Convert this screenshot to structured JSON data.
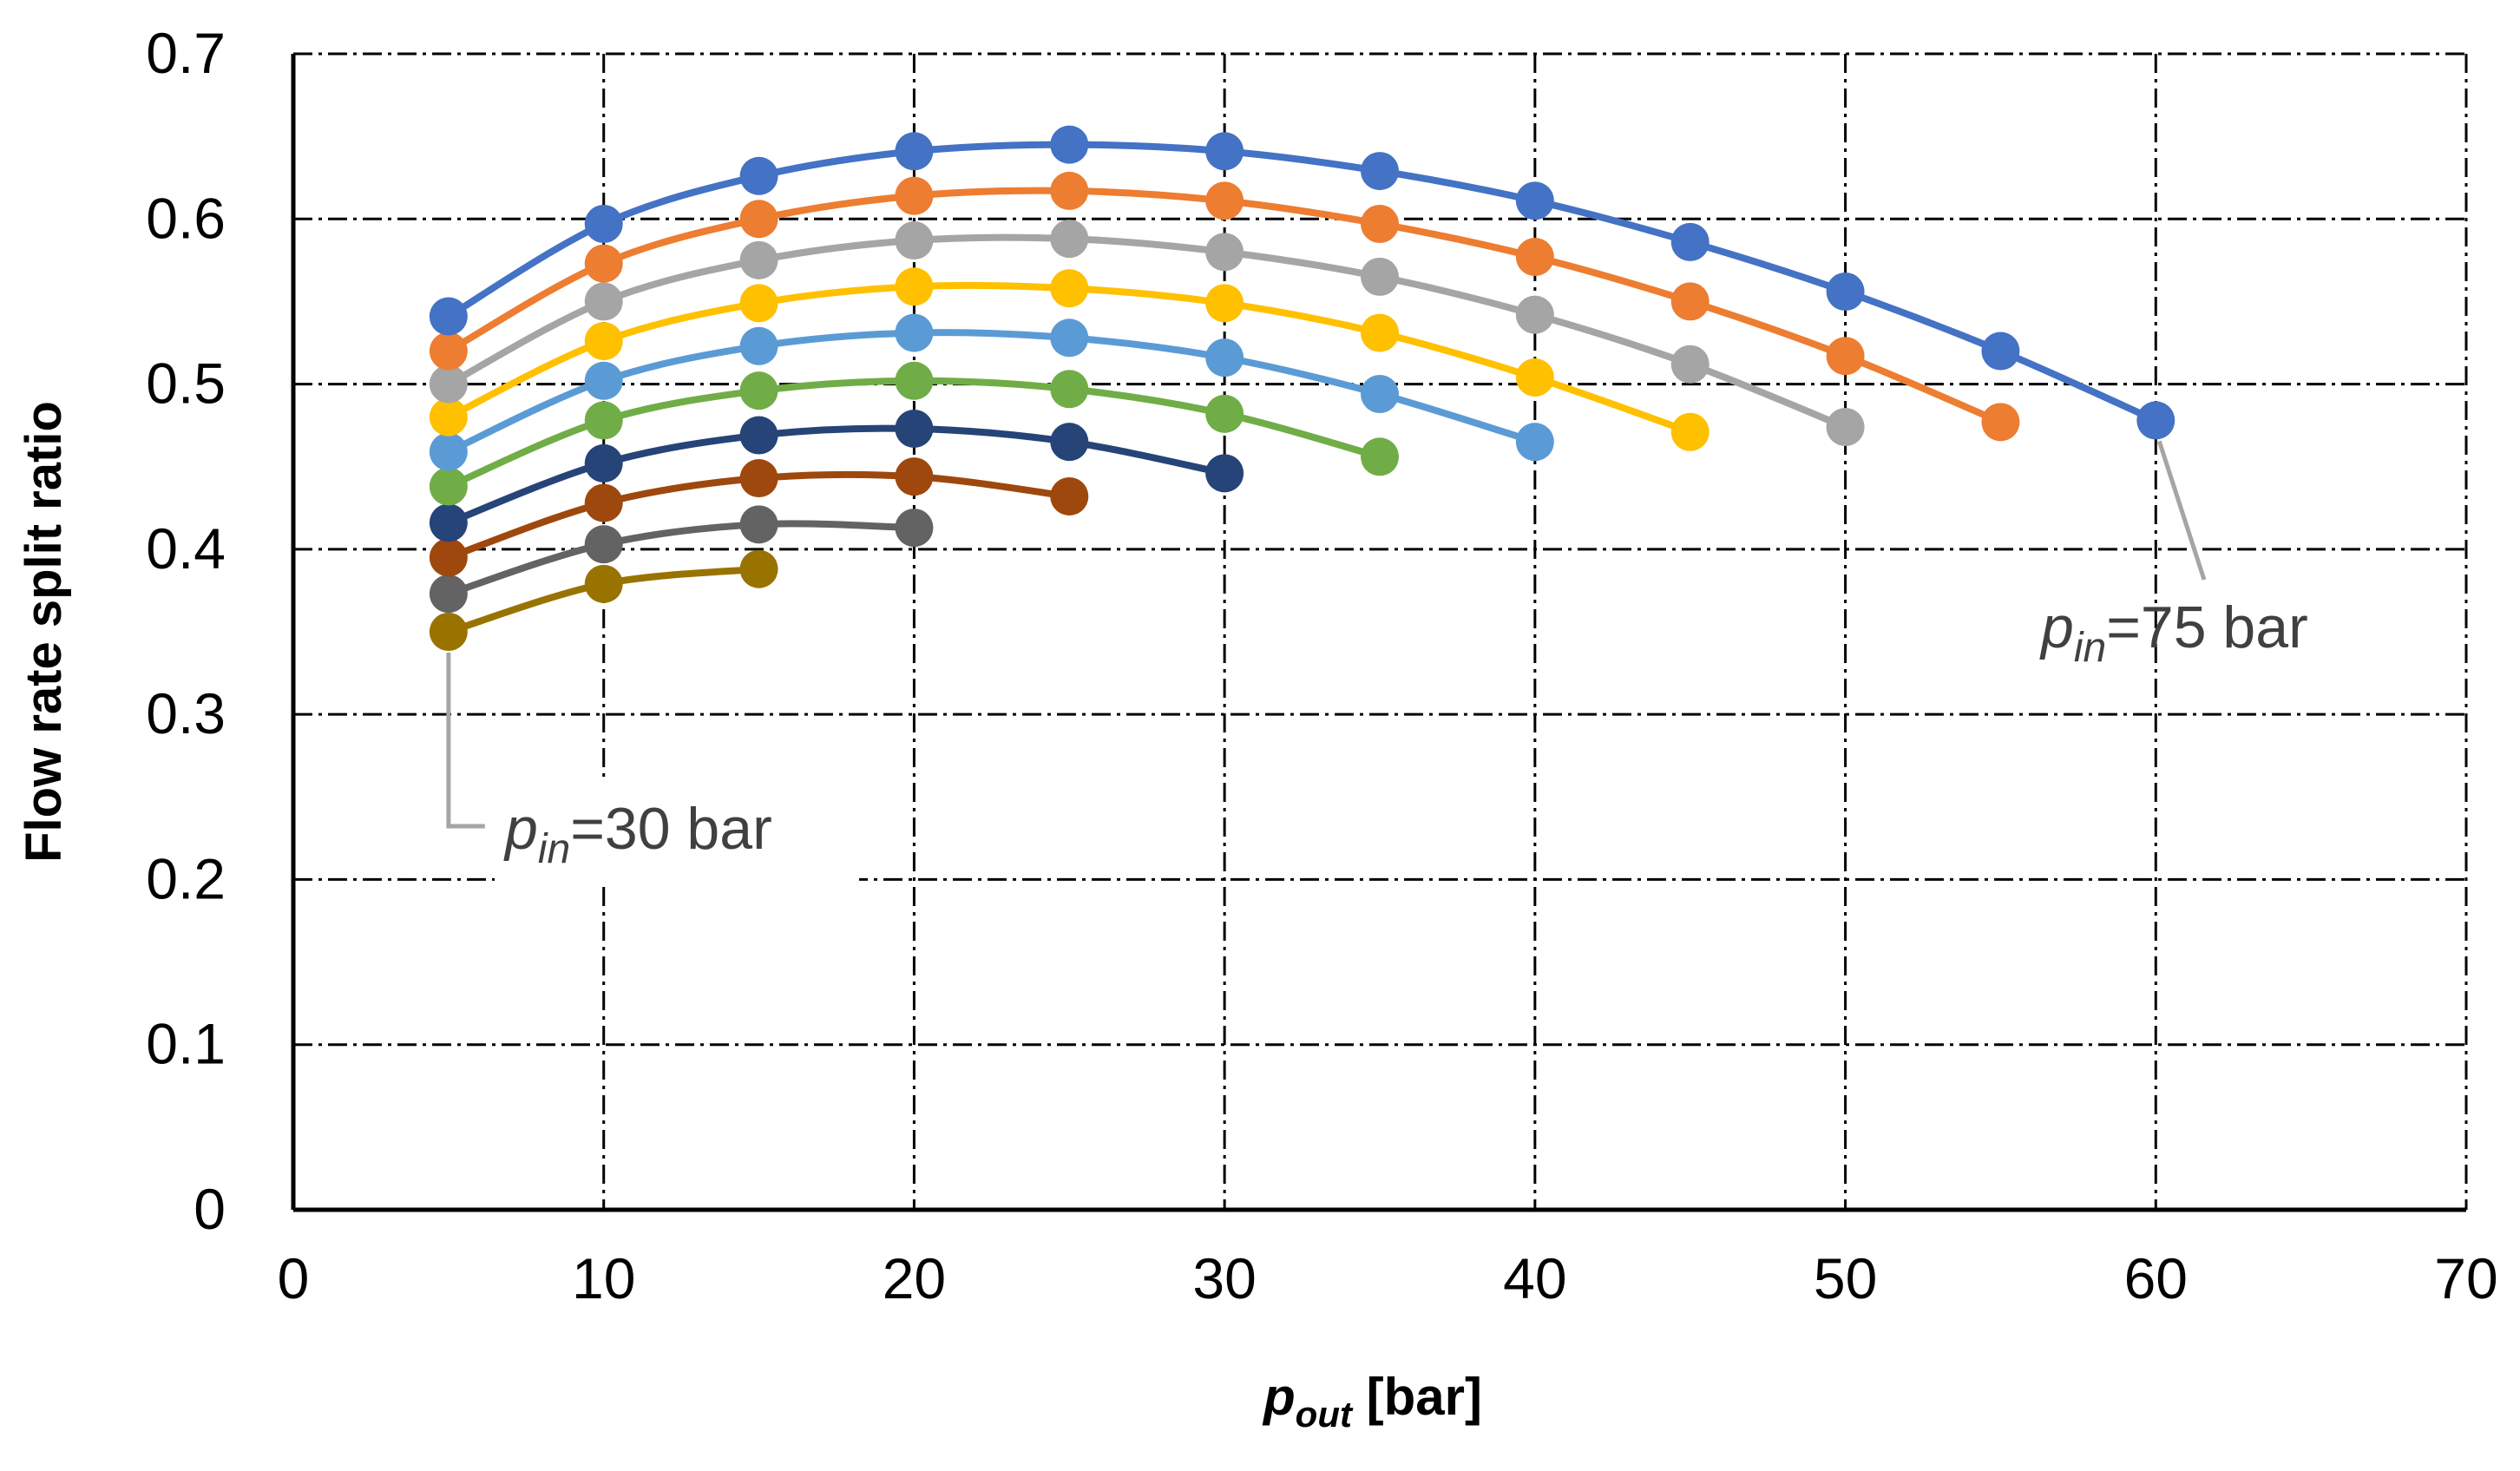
{
  "chart_data": {
    "type": "line",
    "xlabel": {
      "main": "p",
      "sub": "out",
      "unit": " [bar]"
    },
    "ylabel": "Flow rate split ratio",
    "xlim": [
      0,
      70
    ],
    "ylim": [
      0,
      0.7
    ],
    "xticks": [
      "0",
      "10",
      "20",
      "30",
      "40",
      "50",
      "60",
      "70"
    ],
    "yticks": [
      "0",
      "0.1",
      "0.2",
      "0.3",
      "0.4",
      "0.5",
      "0.6",
      "0.7"
    ],
    "grid": "dash-dot",
    "legend": "none",
    "annotations": [
      {
        "main": "p",
        "sub": "in",
        "rest": "=75 bar",
        "points_to": [
          60,
          0.478
        ]
      },
      {
        "main": "p",
        "sub": "in",
        "rest": "=30 bar",
        "points_to": [
          5,
          0.35
        ]
      }
    ],
    "series": [
      {
        "color": "#4472C4",
        "x": [
          5,
          10,
          15,
          20,
          25,
          30,
          35,
          40,
          45,
          50,
          55,
          60
        ],
        "y": [
          0.541,
          0.597,
          0.626,
          0.641,
          0.645,
          0.641,
          0.629,
          0.611,
          0.586,
          0.556,
          0.52,
          0.478
        ]
      },
      {
        "color": "#ED7D31",
        "x": [
          5,
          10,
          15,
          20,
          25,
          30,
          35,
          40,
          45,
          50,
          55
        ],
        "y": [
          0.52,
          0.573,
          0.6,
          0.614,
          0.617,
          0.611,
          0.597,
          0.577,
          0.55,
          0.517,
          0.477
        ]
      },
      {
        "color": "#A5A5A5",
        "x": [
          5,
          10,
          15,
          20,
          25,
          30,
          35,
          40,
          45,
          50
        ],
        "y": [
          0.5,
          0.55,
          0.575,
          0.587,
          0.588,
          0.58,
          0.565,
          0.542,
          0.512,
          0.474
        ]
      },
      {
        "color": "#FFC000",
        "x": [
          5,
          10,
          15,
          20,
          25,
          30,
          35,
          40,
          45
        ],
        "y": [
          0.48,
          0.526,
          0.549,
          0.559,
          0.558,
          0.549,
          0.531,
          0.504,
          0.471
        ]
      },
      {
        "color": "#5B9BD5",
        "x": [
          5,
          10,
          15,
          20,
          25,
          30,
          35,
          40
        ],
        "y": [
          0.459,
          0.502,
          0.523,
          0.531,
          0.528,
          0.516,
          0.494,
          0.465
        ]
      },
      {
        "color": "#70AD47",
        "x": [
          5,
          10,
          15,
          20,
          25,
          30,
          35
        ],
        "y": [
          0.438,
          0.478,
          0.496,
          0.502,
          0.497,
          0.482,
          0.456
        ]
      },
      {
        "color": "#264478",
        "x": [
          5,
          10,
          15,
          20,
          25,
          30
        ],
        "y": [
          0.416,
          0.452,
          0.469,
          0.473,
          0.465,
          0.446
        ]
      },
      {
        "color": "#9E480E",
        "x": [
          5,
          10,
          15,
          20,
          25
        ],
        "y": [
          0.395,
          0.428,
          0.443,
          0.444,
          0.432
        ]
      },
      {
        "color": "#636363",
        "x": [
          5,
          10,
          15,
          20
        ],
        "y": [
          0.373,
          0.403,
          0.415,
          0.413
        ]
      },
      {
        "color": "#997300",
        "x": [
          5,
          10,
          15
        ],
        "y": [
          0.35,
          0.379,
          0.388
        ]
      }
    ]
  }
}
